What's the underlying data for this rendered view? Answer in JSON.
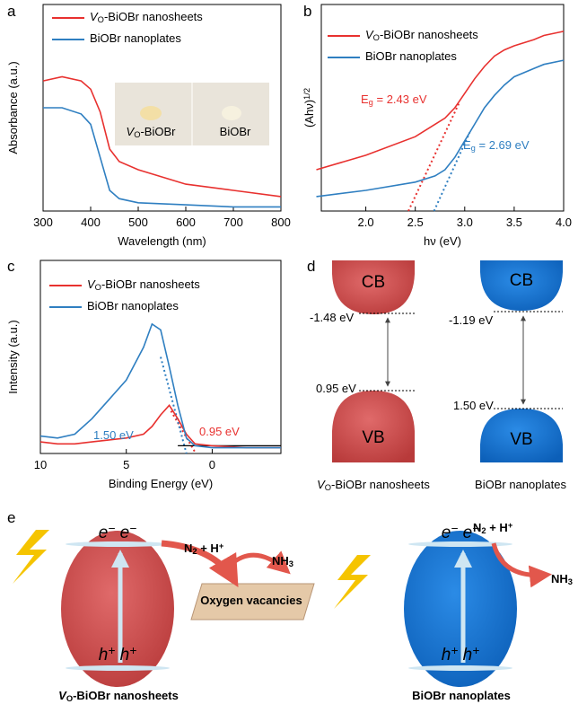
{
  "chart_data": [
    {
      "type": "line",
      "panel": "a",
      "x_label": "Wavelength (nm)",
      "y_label": "Absorbance (a.u.)",
      "x": [
        300,
        340,
        380,
        400,
        420,
        440,
        460,
        500,
        600,
        700,
        800
      ],
      "series": [
        {
          "name": "VO-BiOBr nanosheets",
          "color": "#e8312f",
          "values": [
            0.63,
            0.65,
            0.63,
            0.59,
            0.48,
            0.3,
            0.24,
            0.2,
            0.13,
            0.1,
            0.07
          ]
        },
        {
          "name": "BiOBr nanoplates",
          "color": "#2f7fc1",
          "values": [
            0.5,
            0.5,
            0.47,
            0.42,
            0.26,
            0.1,
            0.06,
            0.04,
            0.03,
            0.02,
            0.02
          ]
        }
      ],
      "xlim": [
        300,
        800
      ],
      "xticks": [
        300,
        400,
        500,
        600,
        700,
        800
      ],
      "ylim": [
        0,
        1
      ],
      "inset_labels": [
        "VO-BiOBr",
        "BiOBr"
      ]
    },
    {
      "type": "line",
      "panel": "b",
      "x_label": "hν (eV)",
      "y_label": "(Ahν)1/2",
      "x": [
        1.5,
        2.0,
        2.5,
        2.7,
        2.8,
        2.9,
        3.0,
        3.1,
        3.2,
        3.3,
        3.4,
        3.5,
        3.7,
        3.8,
        4.0
      ],
      "series": [
        {
          "name": "VO-BiOBr nanosheets",
          "color": "#e8312f",
          "values": [
            0.2,
            0.27,
            0.36,
            0.42,
            0.45,
            0.5,
            0.57,
            0.64,
            0.7,
            0.75,
            0.78,
            0.8,
            0.83,
            0.85,
            0.87
          ]
        },
        {
          "name": "BiOBr nanoplates",
          "color": "#2f7fc1",
          "values": [
            0.07,
            0.1,
            0.14,
            0.17,
            0.2,
            0.26,
            0.34,
            0.42,
            0.5,
            0.56,
            0.61,
            0.65,
            0.69,
            0.71,
            0.73
          ]
        }
      ],
      "fits": [
        {
          "color": "#e8312f",
          "style": "dotted",
          "x": [
            2.43,
            2.95
          ],
          "values": [
            0,
            0.53
          ]
        },
        {
          "color": "#2f7fc1",
          "style": "dotted",
          "x": [
            2.69,
            3.05
          ],
          "values": [
            0,
            0.38
          ]
        }
      ],
      "annotations": [
        {
          "text": "Eg = 2.43 eV",
          "color": "#e8312f"
        },
        {
          "text": "Eg = 2.69 eV",
          "color": "#2f7fc1"
        }
      ],
      "xlim": [
        1.55,
        4.0
      ],
      "xticks": [
        {
          "value": 2,
          "label": "2.0"
        },
        {
          "value": 2.5,
          "label": "2.5"
        },
        {
          "value": 3,
          "label": "3.0"
        },
        {
          "value": 3.5,
          "label": "3.5"
        },
        {
          "value": 4,
          "label": "4.0"
        }
      ],
      "ylim": [
        0,
        1
      ]
    },
    {
      "type": "line",
      "panel": "c",
      "x_label": "Binding Energy (eV)",
      "y_label": "Intensity (a.u.)",
      "x": [
        10,
        9,
        8,
        7,
        6,
        5,
        4,
        3.5,
        3,
        2.5,
        2,
        1.5,
        1,
        0,
        -2,
        -4
      ],
      "series": [
        {
          "name": "VO-BiOBr nanosheets",
          "color": "#e8312f",
          "values": [
            0.06,
            0.05,
            0.05,
            0.06,
            0.07,
            0.08,
            0.1,
            0.14,
            0.2,
            0.25,
            0.18,
            0.1,
            0.05,
            0.04,
            0.03,
            0.03
          ]
        },
        {
          "name": "BiOBr nanoplates",
          "color": "#2f7fc1",
          "values": [
            0.09,
            0.08,
            0.1,
            0.18,
            0.28,
            0.38,
            0.55,
            0.67,
            0.64,
            0.45,
            0.25,
            0.08,
            0.04,
            0.03,
            0.03,
            0.03
          ]
        }
      ],
      "fits": [
        {
          "color": "#e8312f",
          "style": "dotted",
          "x": [
            2.4,
            0.95
          ],
          "values": [
            0.22,
            0
          ]
        },
        {
          "color": "#2f7fc1",
          "style": "dotted",
          "x": [
            3.0,
            1.5
          ],
          "values": [
            0.5,
            0
          ]
        },
        {
          "color": "#000000",
          "style": "solid",
          "x": [
            2.0,
            -4.0
          ],
          "values": [
            0.04,
            0.04
          ]
        }
      ],
      "annotations": [
        {
          "text": "0.95 eV",
          "color": "#e8312f"
        },
        {
          "text": "1.50 eV",
          "color": "#2f7fc1"
        }
      ],
      "xlim": [
        10,
        -4
      ],
      "xticks": [
        10,
        5,
        0
      ],
      "ylim": [
        0,
        1
      ]
    }
  ],
  "diagram_d": {
    "panel": "d",
    "columns": [
      {
        "name": "VO-BiOBr nanosheets",
        "cb": "CB",
        "vb": "VB",
        "cb_level": "-1.48 eV",
        "vb_level": "0.95 eV"
      },
      {
        "name": "BiOBr nanoplates",
        "cb": "CB",
        "vb": "VB",
        "cb_level": "-1.19 eV",
        "vb_level": "1.50 eV"
      }
    ]
  },
  "diagram_e": {
    "panel": "e",
    "left": {
      "electrons": "e− e−",
      "holes": "h+ h+",
      "site": "Oxygen vacancies",
      "reactant": "N2 + H+",
      "product": "NH3",
      "name": "VO-BiOBr nanosheets"
    },
    "right": {
      "electrons": "e− e−",
      "holes": "h+ h+",
      "reactant": "N2 + H+",
      "product": "NH3",
      "name": "BiOBr nanoplates"
    }
  }
}
